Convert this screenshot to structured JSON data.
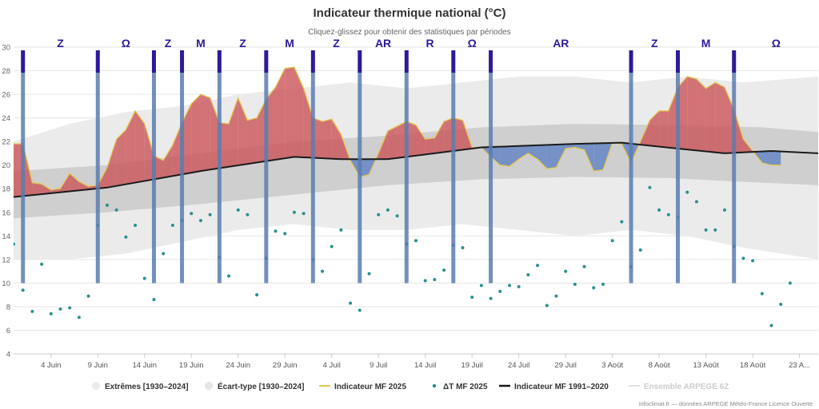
{
  "chart_data": {
    "type": "area",
    "title": "Indicateur thermique national (°C)",
    "subtitle": "Cliquez-glissez pour obtenir des statistiques par périodes",
    "ylim": [
      4,
      30
    ],
    "y_ticks": [
      4,
      6,
      8,
      10,
      12,
      14,
      16,
      18,
      20,
      22,
      24,
      26,
      28,
      30
    ],
    "x_start": "2025-05-31",
    "x_end": "2025-08-25",
    "x_ticks": [
      {
        "date": "2025-06-04",
        "label": "4 Juin"
      },
      {
        "date": "2025-06-09",
        "label": "9 Juin"
      },
      {
        "date": "2025-06-14",
        "label": "14 Juin"
      },
      {
        "date": "2025-06-19",
        "label": "19 Juin"
      },
      {
        "date": "2025-06-24",
        "label": "24 Juin"
      },
      {
        "date": "2025-06-29",
        "label": "29 Juin"
      },
      {
        "date": "2025-07-04",
        "label": "4 Juil"
      },
      {
        "date": "2025-07-09",
        "label": "9 Juil"
      },
      {
        "date": "2025-07-14",
        "label": "14 Juil"
      },
      {
        "date": "2025-07-19",
        "label": "19 Juil"
      },
      {
        "date": "2025-07-24",
        "label": "24 Juil"
      },
      {
        "date": "2025-07-29",
        "label": "29 Juil"
      },
      {
        "date": "2025-08-03",
        "label": "3 Août"
      },
      {
        "date": "2025-08-08",
        "label": "8 Août"
      },
      {
        "date": "2025-08-13",
        "label": "13 Août"
      },
      {
        "date": "2025-08-18",
        "label": "18 Août"
      },
      {
        "date": "2025-08-23",
        "label": "23 A..."
      }
    ],
    "grid": true,
    "legend_position": "bottom",
    "colors": {
      "extremes": "#ebebeb",
      "ecart_type": "#cfcfcf",
      "mf2025_line": "#e3c64f",
      "above_normal": "#c94f55",
      "below_normal": "#5b7fc2",
      "delta": "#2a8f8f",
      "normal": "#1a1a1a",
      "regime_line": "#5a7db0",
      "regime_cap": "#2e1a99",
      "regime_label": "#2e1a99"
    },
    "series": [
      {
        "name": "Extrêmes [1930–2024]",
        "type": "arearange",
        "dates": [
          "2025-05-31",
          "2025-06-06",
          "2025-06-12",
          "2025-06-18",
          "2025-06-24",
          "2025-06-30",
          "2025-07-06",
          "2025-07-12",
          "2025-07-18",
          "2025-07-24",
          "2025-07-30",
          "2025-08-05",
          "2025-08-11",
          "2025-08-17",
          "2025-08-25"
        ],
        "low": [
          12.0,
          12.0,
          12.5,
          13.5,
          14.5,
          15.0,
          14.5,
          14.5,
          15.0,
          14.5,
          14.0,
          14.5,
          14.0,
          13.0,
          12.0
        ],
        "high": [
          22.0,
          23.5,
          24.5,
          25.0,
          26.0,
          26.5,
          27.0,
          26.5,
          27.0,
          27.5,
          27.5,
          27.0,
          27.5,
          27.0,
          27.5
        ]
      },
      {
        "name": "Écart-type [1930–2024]",
        "type": "arearange",
        "dates": [
          "2025-05-31",
          "2025-06-10",
          "2025-06-20",
          "2025-06-30",
          "2025-07-10",
          "2025-07-20",
          "2025-07-30",
          "2025-08-09",
          "2025-08-19",
          "2025-08-25"
        ],
        "low": [
          15.5,
          16.0,
          16.7,
          17.5,
          18.3,
          18.8,
          19.0,
          18.9,
          18.5,
          18.3
        ],
        "high": [
          19.5,
          20.0,
          21.0,
          22.0,
          22.5,
          23.2,
          23.5,
          23.4,
          23.2,
          22.8
        ]
      },
      {
        "name": "Indicateur MF 2025",
        "type": "line",
        "dates": [
          "2025-05-31",
          "2025-06-01",
          "2025-06-02",
          "2025-06-03",
          "2025-06-04",
          "2025-06-05",
          "2025-06-06",
          "2025-06-07",
          "2025-06-08",
          "2025-06-09",
          "2025-06-10",
          "2025-06-11",
          "2025-06-12",
          "2025-06-13",
          "2025-06-14",
          "2025-06-15",
          "2025-06-16",
          "2025-06-17",
          "2025-06-18",
          "2025-06-19",
          "2025-06-20",
          "2025-06-21",
          "2025-06-22",
          "2025-06-23",
          "2025-06-24",
          "2025-06-25",
          "2025-06-26",
          "2025-06-27",
          "2025-06-28",
          "2025-06-29",
          "2025-06-30",
          "2025-07-01",
          "2025-07-02",
          "2025-07-03",
          "2025-07-04",
          "2025-07-05",
          "2025-07-06",
          "2025-07-07",
          "2025-07-08",
          "2025-07-09",
          "2025-07-10",
          "2025-07-11",
          "2025-07-12",
          "2025-07-13",
          "2025-07-14",
          "2025-07-15",
          "2025-07-16",
          "2025-07-17",
          "2025-07-18",
          "2025-07-19",
          "2025-07-20",
          "2025-07-21",
          "2025-07-22",
          "2025-07-23",
          "2025-07-24",
          "2025-07-25",
          "2025-07-26",
          "2025-07-27",
          "2025-07-28",
          "2025-07-29",
          "2025-07-30",
          "2025-07-31",
          "2025-08-01",
          "2025-08-02",
          "2025-08-03",
          "2025-08-04",
          "2025-08-05",
          "2025-08-06",
          "2025-08-07",
          "2025-08-08",
          "2025-08-09",
          "2025-08-10",
          "2025-08-11",
          "2025-08-12",
          "2025-08-13",
          "2025-08-14",
          "2025-08-15",
          "2025-08-16",
          "2025-08-17",
          "2025-08-18",
          "2025-08-19",
          "2025-08-20",
          "2025-08-21"
        ],
        "values": [
          21.8,
          21.8,
          18.5,
          18.4,
          17.9,
          18.0,
          19.3,
          18.6,
          18.2,
          18.3,
          19.8,
          22.2,
          23.0,
          24.6,
          23.5,
          20.8,
          20.4,
          21.7,
          23.6,
          25.2,
          26.0,
          25.7,
          23.6,
          23.5,
          25.7,
          23.8,
          24.0,
          25.6,
          26.6,
          28.2,
          28.3,
          26.5,
          24.0,
          23.7,
          23.9,
          22.6,
          20.4,
          19.0,
          19.2,
          21.0,
          22.9,
          23.3,
          23.7,
          23.4,
          22.2,
          22.3,
          23.7,
          24.0,
          23.8,
          21.5,
          21.5,
          20.7,
          20.0,
          19.9,
          20.5,
          21.0,
          20.5,
          19.7,
          19.8,
          21.4,
          21.5,
          21.3,
          19.5,
          19.6,
          21.9,
          21.8,
          20.2,
          22.0,
          23.8,
          24.6,
          24.6,
          26.6,
          27.5,
          27.3,
          26.5,
          27.0,
          26.6,
          24.7,
          22.2,
          21.2,
          20.2,
          20.0,
          20.0
        ]
      },
      {
        "name": "ΔT MF 2025",
        "type": "scatter",
        "dates": [
          "2025-05-31",
          "2025-06-01",
          "2025-06-02",
          "2025-06-03",
          "2025-06-04",
          "2025-06-05",
          "2025-06-06",
          "2025-06-07",
          "2025-06-08",
          "2025-06-09",
          "2025-06-10",
          "2025-06-11",
          "2025-06-12",
          "2025-06-13",
          "2025-06-14",
          "2025-06-15",
          "2025-06-16",
          "2025-06-17",
          "2025-06-18",
          "2025-06-19",
          "2025-06-20",
          "2025-06-21",
          "2025-06-22",
          "2025-06-23",
          "2025-06-24",
          "2025-06-25",
          "2025-06-26",
          "2025-06-27",
          "2025-06-28",
          "2025-06-29",
          "2025-06-30",
          "2025-07-01",
          "2025-07-02",
          "2025-07-03",
          "2025-07-04",
          "2025-07-05",
          "2025-07-06",
          "2025-07-07",
          "2025-07-08",
          "2025-07-09",
          "2025-07-10",
          "2025-07-11",
          "2025-07-12",
          "2025-07-13",
          "2025-07-14",
          "2025-07-15",
          "2025-07-16",
          "2025-07-17",
          "2025-07-18",
          "2025-07-19",
          "2025-07-20",
          "2025-07-21",
          "2025-07-22",
          "2025-07-23",
          "2025-07-24",
          "2025-07-25",
          "2025-07-26",
          "2025-07-27",
          "2025-07-28",
          "2025-07-29",
          "2025-07-30",
          "2025-07-31",
          "2025-08-01",
          "2025-08-02",
          "2025-08-03",
          "2025-08-04",
          "2025-08-05",
          "2025-08-06",
          "2025-08-07",
          "2025-08-08",
          "2025-08-09",
          "2025-08-10",
          "2025-08-11",
          "2025-08-12",
          "2025-08-13",
          "2025-08-14",
          "2025-08-15",
          "2025-08-16",
          "2025-08-17",
          "2025-08-18",
          "2025-08-19",
          "2025-08-20",
          "2025-08-21",
          "2025-08-22"
        ],
        "values": [
          13.3,
          9.4,
          7.6,
          11.6,
          7.4,
          7.8,
          7.9,
          7.1,
          8.9,
          14.9,
          16.6,
          16.2,
          13.9,
          14.9,
          10.4,
          8.6,
          12.5,
          14.9,
          15.3,
          15.9,
          15.3,
          15.8,
          12.2,
          10.6,
          16.2,
          15.8,
          9.0,
          12.1,
          14.4,
          14.2,
          16.0,
          15.9,
          12.0,
          11.0,
          13.1,
          14.5,
          8.3,
          7.7,
          10.8,
          15.8,
          16.2,
          15.7,
          13.3,
          13.6,
          10.2,
          10.3,
          11.1,
          13.2,
          13.0,
          8.8,
          9.8,
          8.7,
          9.3,
          9.8,
          9.7,
          10.7,
          11.5,
          8.1,
          8.9,
          11.0,
          9.9,
          11.4,
          9.6,
          9.9,
          13.6,
          15.2,
          11.4,
          12.8,
          18.1,
          16.2,
          15.8,
          15.6,
          17.7,
          16.9,
          14.5,
          14.5,
          16.2,
          13.1,
          12.1,
          11.9,
          9.1,
          6.4,
          8.2,
          10.0
        ]
      },
      {
        "name": "Indicateur MF 1991–2020",
        "type": "line",
        "dates": [
          "2025-05-31",
          "2025-06-10",
          "2025-06-20",
          "2025-06-30",
          "2025-07-05",
          "2025-07-10",
          "2025-07-20",
          "2025-07-30",
          "2025-08-04",
          "2025-08-10",
          "2025-08-15",
          "2025-08-20",
          "2025-08-25"
        ],
        "values": [
          17.3,
          18.1,
          19.5,
          20.7,
          20.5,
          20.5,
          21.5,
          21.8,
          21.9,
          21.4,
          21.0,
          21.2,
          21.0
        ]
      },
      {
        "name": "Ensemble ARPEGE 6Z",
        "type": "line",
        "dates": [],
        "values": []
      }
    ],
    "regimes": [
      {
        "date": "2025-06-01",
        "label": "Z"
      },
      {
        "date": "2025-06-09",
        "label": "Ω"
      },
      {
        "date": "2025-06-15",
        "label": "Z"
      },
      {
        "date": "2025-06-18",
        "label": "M"
      },
      {
        "date": "2025-06-22",
        "label": "Z"
      },
      {
        "date": "2025-06-27",
        "label": "M"
      },
      {
        "date": "2025-07-02",
        "label": "Z"
      },
      {
        "date": "2025-07-07",
        "label": "AR"
      },
      {
        "date": "2025-07-12",
        "label": "R"
      },
      {
        "date": "2025-07-17",
        "label": "Ω"
      },
      {
        "date": "2025-07-21",
        "label": "AR"
      },
      {
        "date": "2025-08-05",
        "label": "Z"
      },
      {
        "date": "2025-08-10",
        "label": "M"
      },
      {
        "date": "2025-08-16",
        "label": "Ω"
      }
    ]
  },
  "legend": [
    {
      "label": "Extrêmes [1930–2024]",
      "muted": false
    },
    {
      "label": "Écart-type [1930–2024]",
      "muted": false
    },
    {
      "label": "Indicateur MF 2025",
      "muted": false
    },
    {
      "label": "ΔT MF 2025",
      "muted": false
    },
    {
      "label": "Indicateur MF 1991–2020",
      "muted": false
    },
    {
      "label": "Ensemble ARPEGE 6Z",
      "muted": true
    }
  ],
  "credits": "infoclimat.fr — données ARPEGE Météo-France Licence Ouverte"
}
